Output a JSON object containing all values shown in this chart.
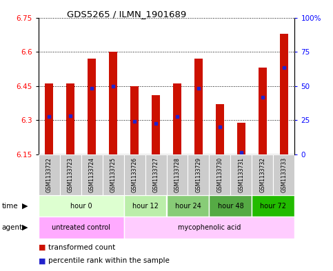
{
  "title": "GDS5265 / ILMN_1901689",
  "samples": [
    "GSM1133722",
    "GSM1133723",
    "GSM1133724",
    "GSM1133725",
    "GSM1133726",
    "GSM1133727",
    "GSM1133728",
    "GSM1133729",
    "GSM1133730",
    "GSM1133731",
    "GSM1133732",
    "GSM1133733"
  ],
  "bar_tops": [
    6.46,
    6.46,
    6.57,
    6.6,
    6.45,
    6.41,
    6.46,
    6.57,
    6.37,
    6.29,
    6.53,
    6.68
  ],
  "bar_bottom": 6.15,
  "blue_marker_values": [
    6.315,
    6.32,
    6.44,
    6.45,
    6.295,
    6.285,
    6.315,
    6.44,
    6.27,
    6.16,
    6.4,
    6.53
  ],
  "ylim_left": [
    6.15,
    6.75
  ],
  "ylim_right": [
    0,
    100
  ],
  "yticks_left": [
    6.15,
    6.3,
    6.45,
    6.6,
    6.75
  ],
  "yticks_right": [
    0,
    25,
    50,
    75,
    100
  ],
  "ytick_labels_right": [
    "0",
    "25",
    "50",
    "75",
    "100%"
  ],
  "bar_color": "#cc1100",
  "blue_color": "#2222cc",
  "time_groups": [
    {
      "label": "hour 0",
      "indices": [
        0,
        1,
        2,
        3
      ],
      "color": "#ddffd0"
    },
    {
      "label": "hour 12",
      "indices": [
        4,
        5
      ],
      "color": "#bbeeaa"
    },
    {
      "label": "hour 24",
      "indices": [
        6,
        7
      ],
      "color": "#88cc77"
    },
    {
      "label": "hour 48",
      "indices": [
        8,
        9
      ],
      "color": "#55aa44"
    },
    {
      "label": "hour 72",
      "indices": [
        10,
        11
      ],
      "color": "#22bb00"
    }
  ],
  "agent_groups": [
    {
      "label": "untreated control",
      "indices": [
        0,
        1,
        2,
        3
      ],
      "color": "#ffaaff"
    },
    {
      "label": "mycophenolic acid",
      "indices": [
        4,
        5,
        6,
        7,
        8,
        9,
        10,
        11
      ],
      "color": "#ffccff"
    }
  ],
  "sample_bg_color": "#cccccc",
  "legend_items": [
    {
      "color": "#cc1100",
      "label": "transformed count"
    },
    {
      "color": "#2222cc",
      "label": "percentile rank within the sample"
    }
  ]
}
